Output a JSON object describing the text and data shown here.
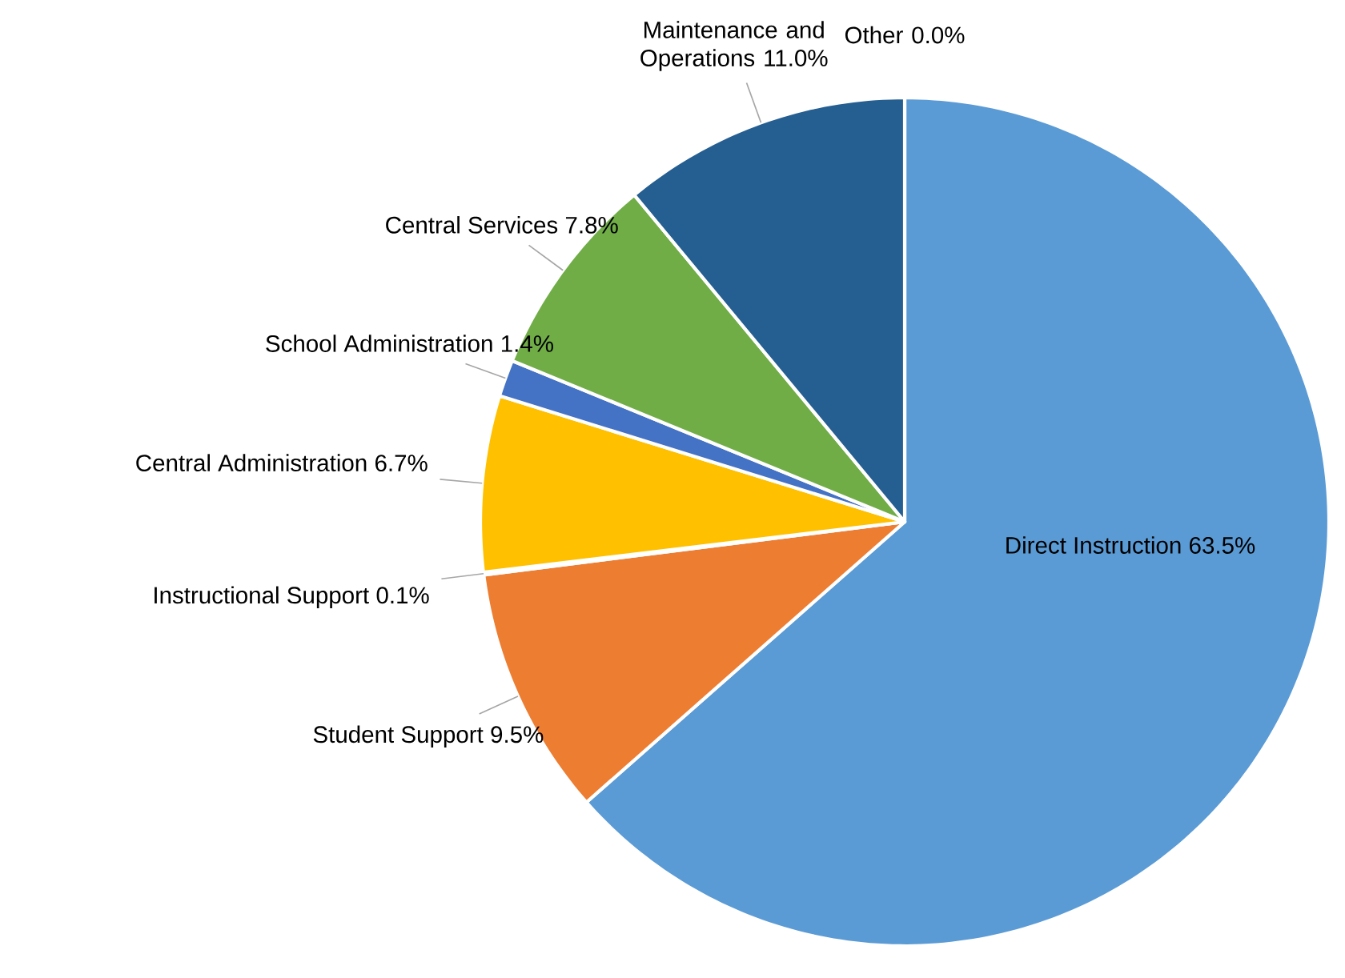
{
  "chart_data": {
    "type": "pie",
    "categories": [
      "Direct Instruction",
      "Student Support",
      "Instructional Support",
      "Central Administration",
      "School Administration",
      "Central Services",
      "Maintenance and Operations",
      "Other"
    ],
    "values": [
      63.5,
      9.5,
      0.1,
      6.7,
      1.4,
      7.8,
      11.0,
      0.0
    ],
    "colors": [
      "#5b9bd5",
      "#ed7d31",
      "#a5a5a5",
      "#ffc000",
      "#4472c4",
      "#70ad47",
      "#255e91",
      "#9e480e"
    ],
    "value_labels": [
      "63.5%",
      "9.5%",
      "0.1%",
      "6.7%",
      "1.4%",
      "7.8%",
      "11.0%",
      "0.0%"
    ]
  }
}
